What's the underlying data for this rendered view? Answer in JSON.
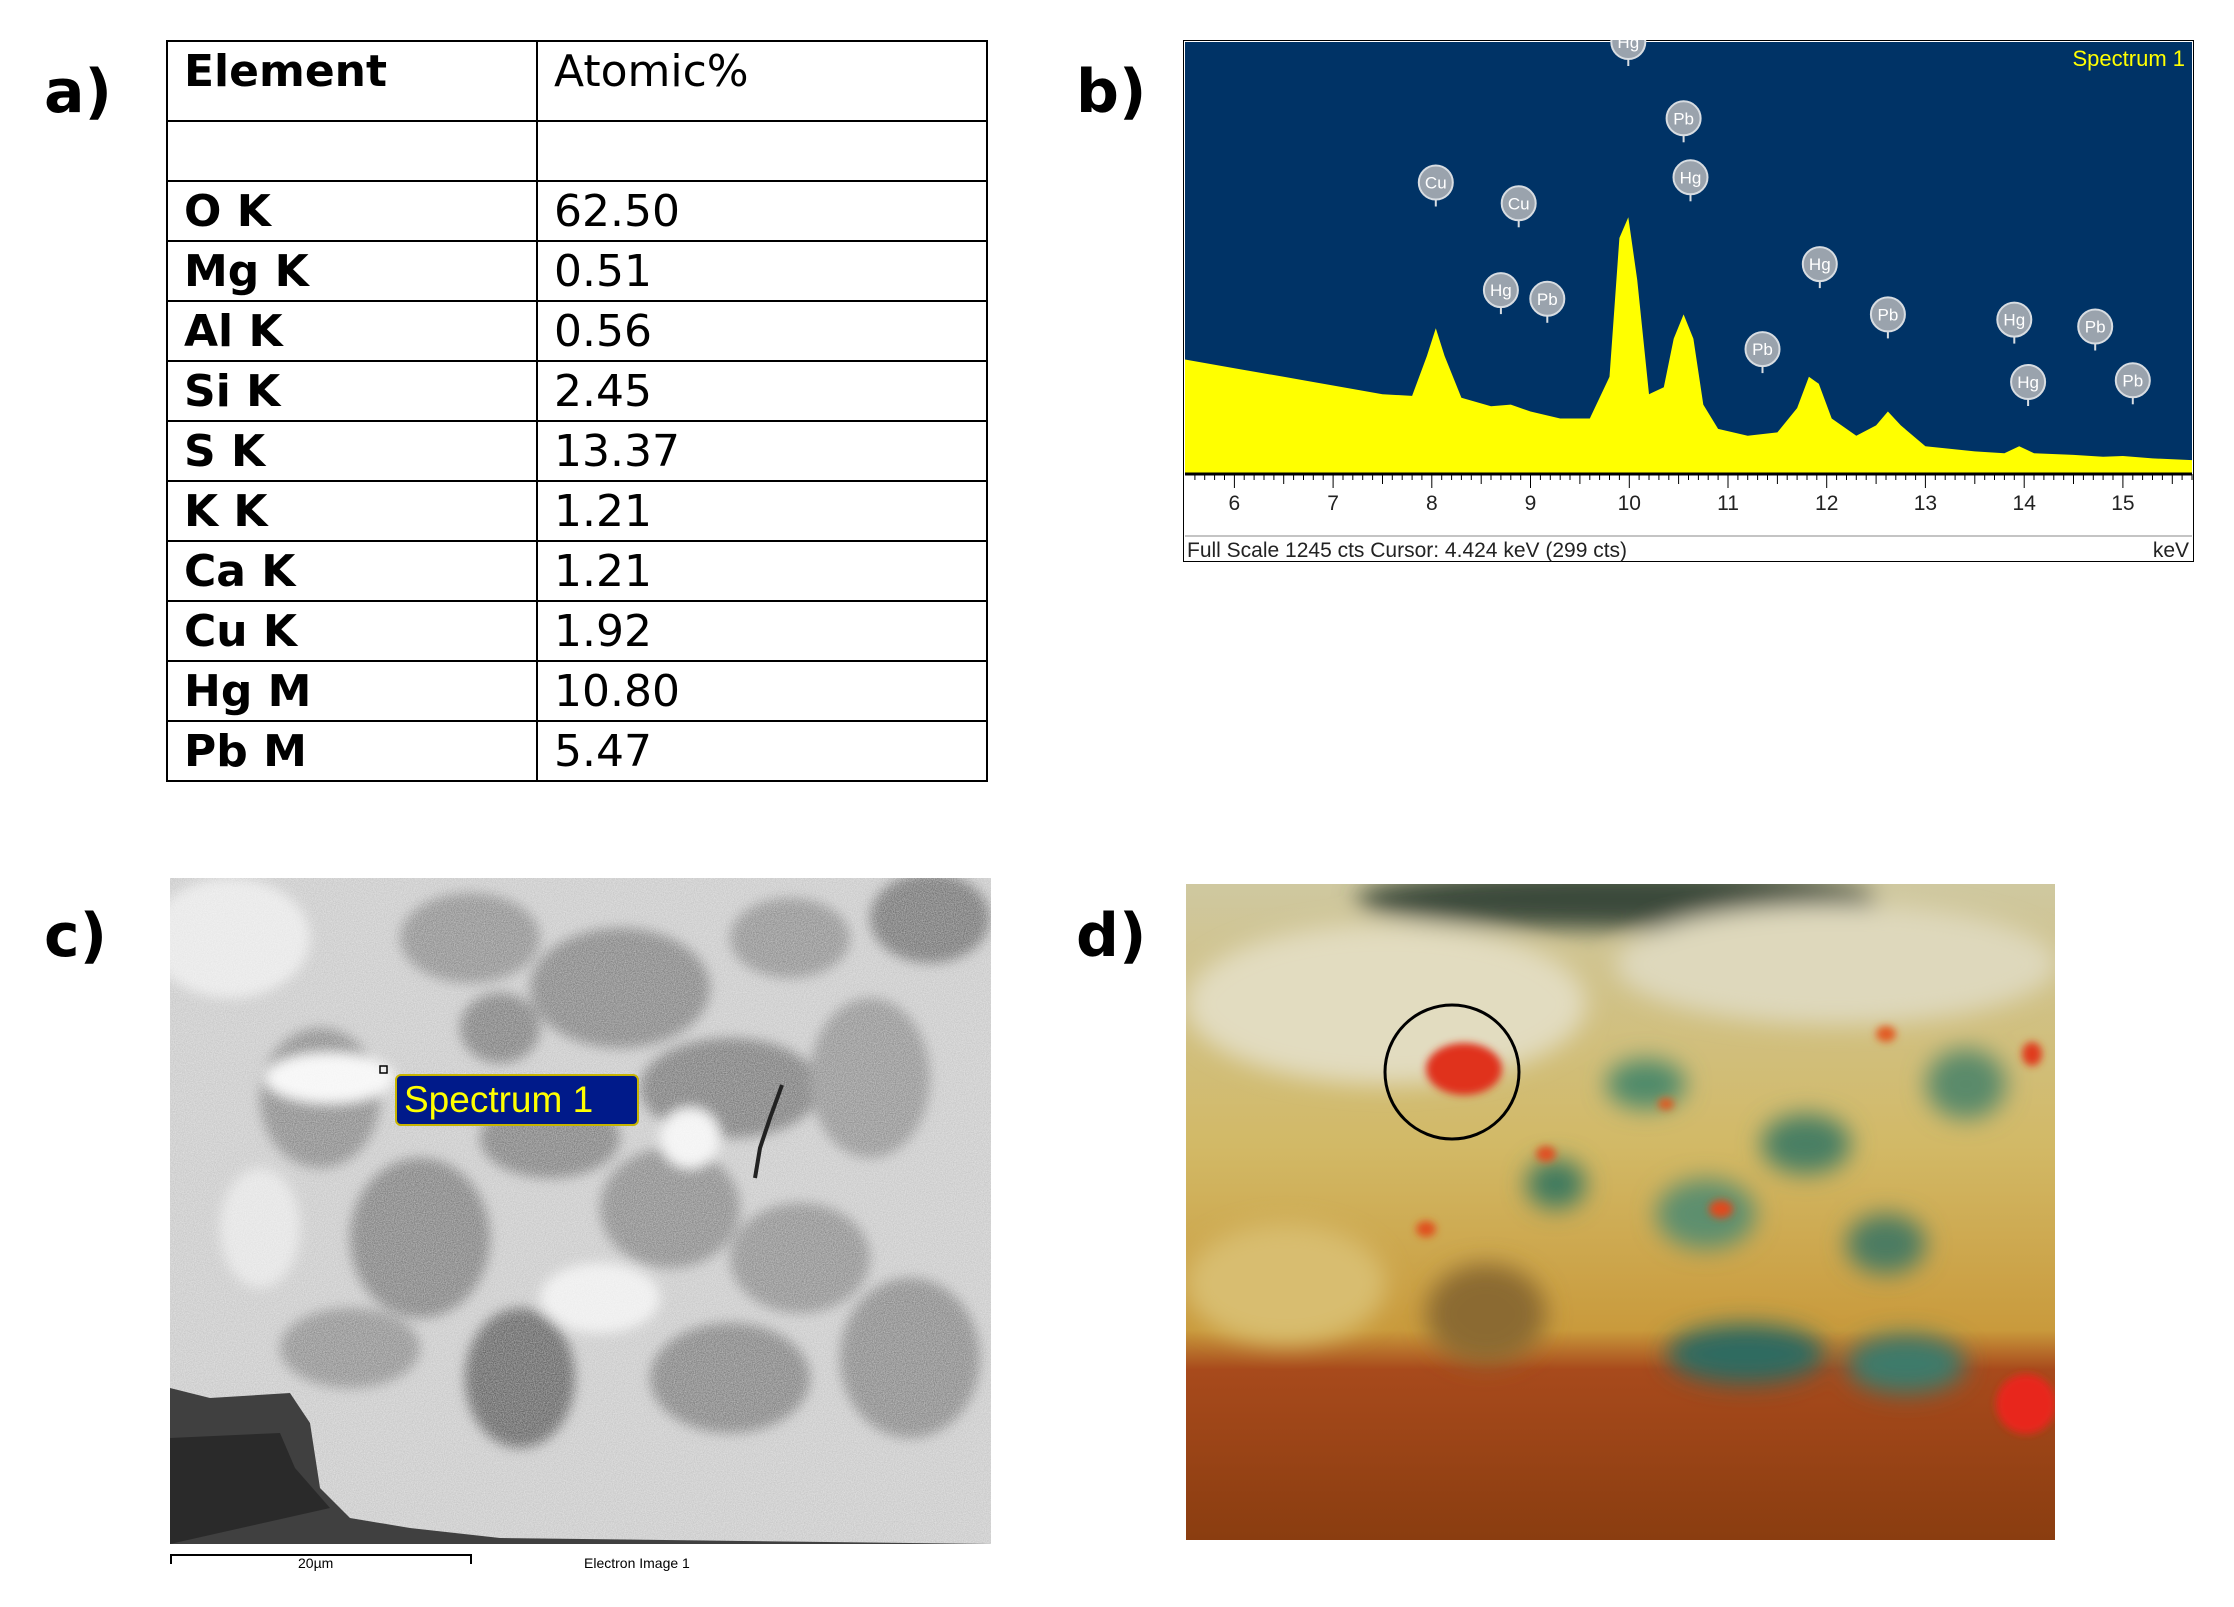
{
  "panels": {
    "a": "a)",
    "b": "b)",
    "c": "c)",
    "d": "d)"
  },
  "table": {
    "headers": [
      "Element",
      "Atomic%"
    ],
    "rows": [
      {
        "element": "O K",
        "value": "62.50"
      },
      {
        "element": "Mg K",
        "value": "0.51"
      },
      {
        "element": "Al K",
        "value": "0.56"
      },
      {
        "element": "Si K",
        "value": "2.45"
      },
      {
        "element": "S K",
        "value": "13.37"
      },
      {
        "element": "K K",
        "value": "1.21"
      },
      {
        "element": "Ca K",
        "value": "1.21"
      },
      {
        "element": "Cu K",
        "value": "1.92"
      },
      {
        "element": "Hg M",
        "value": "10.80"
      },
      {
        "element": "Pb M",
        "value": "5.47"
      }
    ]
  },
  "chart_data": {
    "type": "area",
    "title": "Spectrum 1",
    "xlabel": "keV",
    "xlim": [
      5.5,
      15.7
    ],
    "x_ticks": [
      6,
      7,
      8,
      9,
      10,
      11,
      12,
      13,
      14,
      15
    ],
    "footer_left": "Full Scale 1245 cts  Cursor: 4.424 keV (299 cts)",
    "footer_right": "keV",
    "colors": {
      "background": "#003366",
      "fill": "#ffff00",
      "title": "#ffff00"
    },
    "series": [
      {
        "x": [
          5.5,
          6.0,
          6.5,
          7.0,
          7.5,
          7.8,
          7.95,
          8.04,
          8.13,
          8.3,
          8.6,
          8.8,
          9.0,
          9.3,
          9.6,
          9.8,
          9.9,
          9.99,
          10.08,
          10.2,
          10.35,
          10.45,
          10.55,
          10.65,
          10.75,
          10.9,
          11.2,
          11.5,
          11.7,
          11.82,
          11.92,
          12.05,
          12.3,
          12.5,
          12.62,
          12.75,
          13.0,
          13.5,
          13.8,
          13.95,
          14.1,
          14.5,
          14.8,
          15.0,
          15.3,
          15.7
        ],
        "y": [
          330,
          305,
          280,
          255,
          230,
          225,
          340,
          420,
          340,
          220,
          195,
          200,
          180,
          160,
          160,
          280,
          680,
          740,
          560,
          230,
          250,
          390,
          460,
          390,
          200,
          130,
          110,
          120,
          190,
          280,
          260,
          160,
          110,
          140,
          180,
          140,
          80,
          65,
          60,
          80,
          60,
          55,
          50,
          52,
          45,
          40
        ]
      }
    ],
    "peak_labels": [
      {
        "label": "Cu",
        "x": 8.04,
        "y": 840
      },
      {
        "label": "Cu",
        "x": 8.88,
        "y": 780
      },
      {
        "label": "Hg",
        "x": 8.7,
        "y": 530
      },
      {
        "label": "Pb",
        "x": 9.17,
        "y": 505
      },
      {
        "label": "Hg",
        "x": 9.99,
        "y": 1245
      },
      {
        "label": "Pb",
        "x": 10.55,
        "y": 1025
      },
      {
        "label": "Hg",
        "x": 10.62,
        "y": 855
      },
      {
        "label": "Pb",
        "x": 11.35,
        "y": 360
      },
      {
        "label": "Hg",
        "x": 11.93,
        "y": 605
      },
      {
        "label": "Pb",
        "x": 12.62,
        "y": 460
      },
      {
        "label": "Hg",
        "x": 13.9,
        "y": 445
      },
      {
        "label": "Hg",
        "x": 14.04,
        "y": 265
      },
      {
        "label": "Pb",
        "x": 14.72,
        "y": 425
      },
      {
        "label": "Pb",
        "x": 15.1,
        "y": 270
      }
    ]
  },
  "sem": {
    "label": "Spectrum 1",
    "scale": "20µm",
    "caption": "Electron Image 1"
  }
}
